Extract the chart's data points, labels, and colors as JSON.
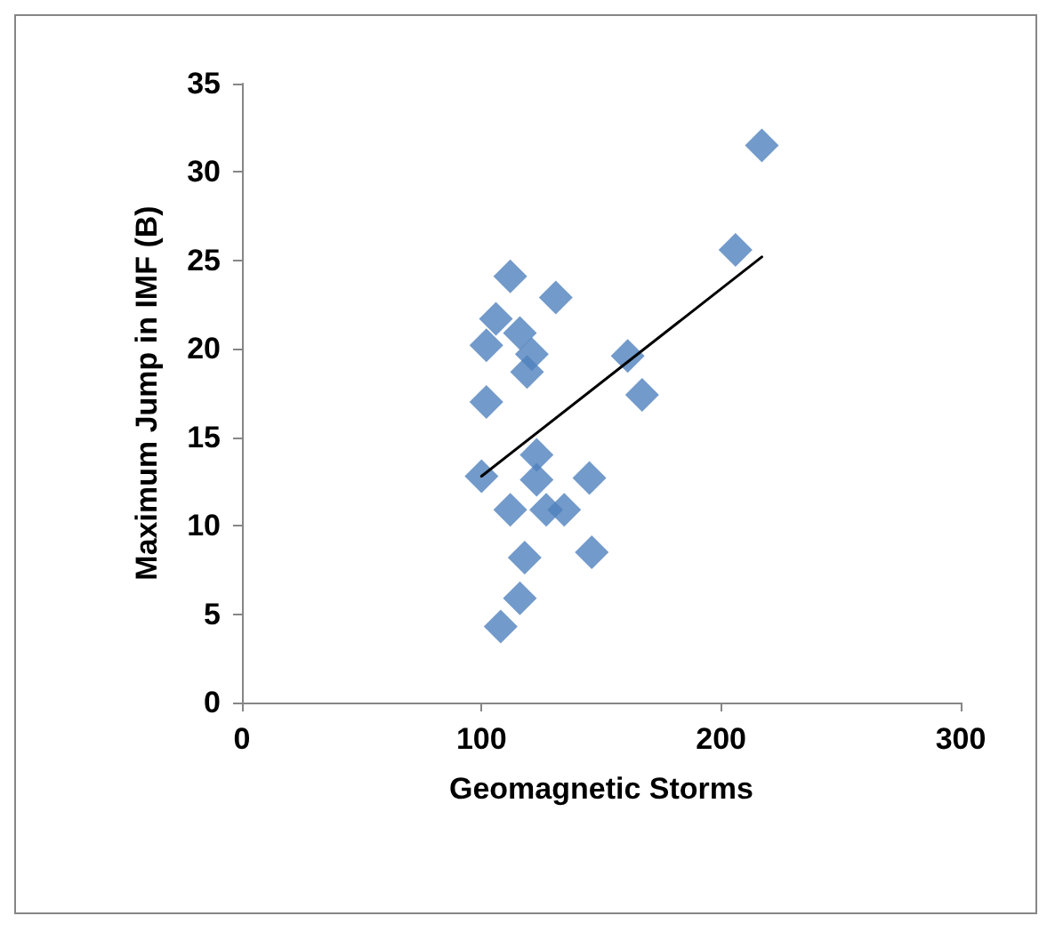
{
  "chart_data": {
    "type": "scatter",
    "xlabel": "Geomagnetic Storms",
    "ylabel": "Maximum Jump in IMF (B)",
    "xlim": [
      0,
      300
    ],
    "xticks": [
      0,
      100,
      200,
      300
    ],
    "ylim": [
      0,
      35
    ],
    "yticks": [
      0,
      5,
      10,
      15,
      20,
      25,
      30,
      35
    ],
    "grid": false,
    "marker": "diamond",
    "series": [
      {
        "color": "#4f81bd",
        "x": [
          112,
          131,
          106,
          116,
          102,
          121,
          119,
          161,
          167,
          102,
          123,
          100,
          123,
          145,
          112,
          127,
          134.5,
          118,
          146,
          116,
          108,
          217,
          206
        ],
        "values": [
          24.1,
          22.9,
          21.7,
          20.9,
          20.2,
          19.7,
          18.7,
          19.6,
          17.4,
          17.0,
          14.0,
          12.8,
          12.6,
          12.7,
          10.9,
          10.9,
          10.9,
          8.2,
          8.5,
          5.9,
          4.3,
          31.5,
          25.6
        ]
      },
      {
        "type": "line",
        "color": "#000000",
        "marker": "none",
        "line_style": "solid",
        "x": [
          100,
          217
        ],
        "values": [
          12.8,
          25.2
        ]
      }
    ]
  }
}
